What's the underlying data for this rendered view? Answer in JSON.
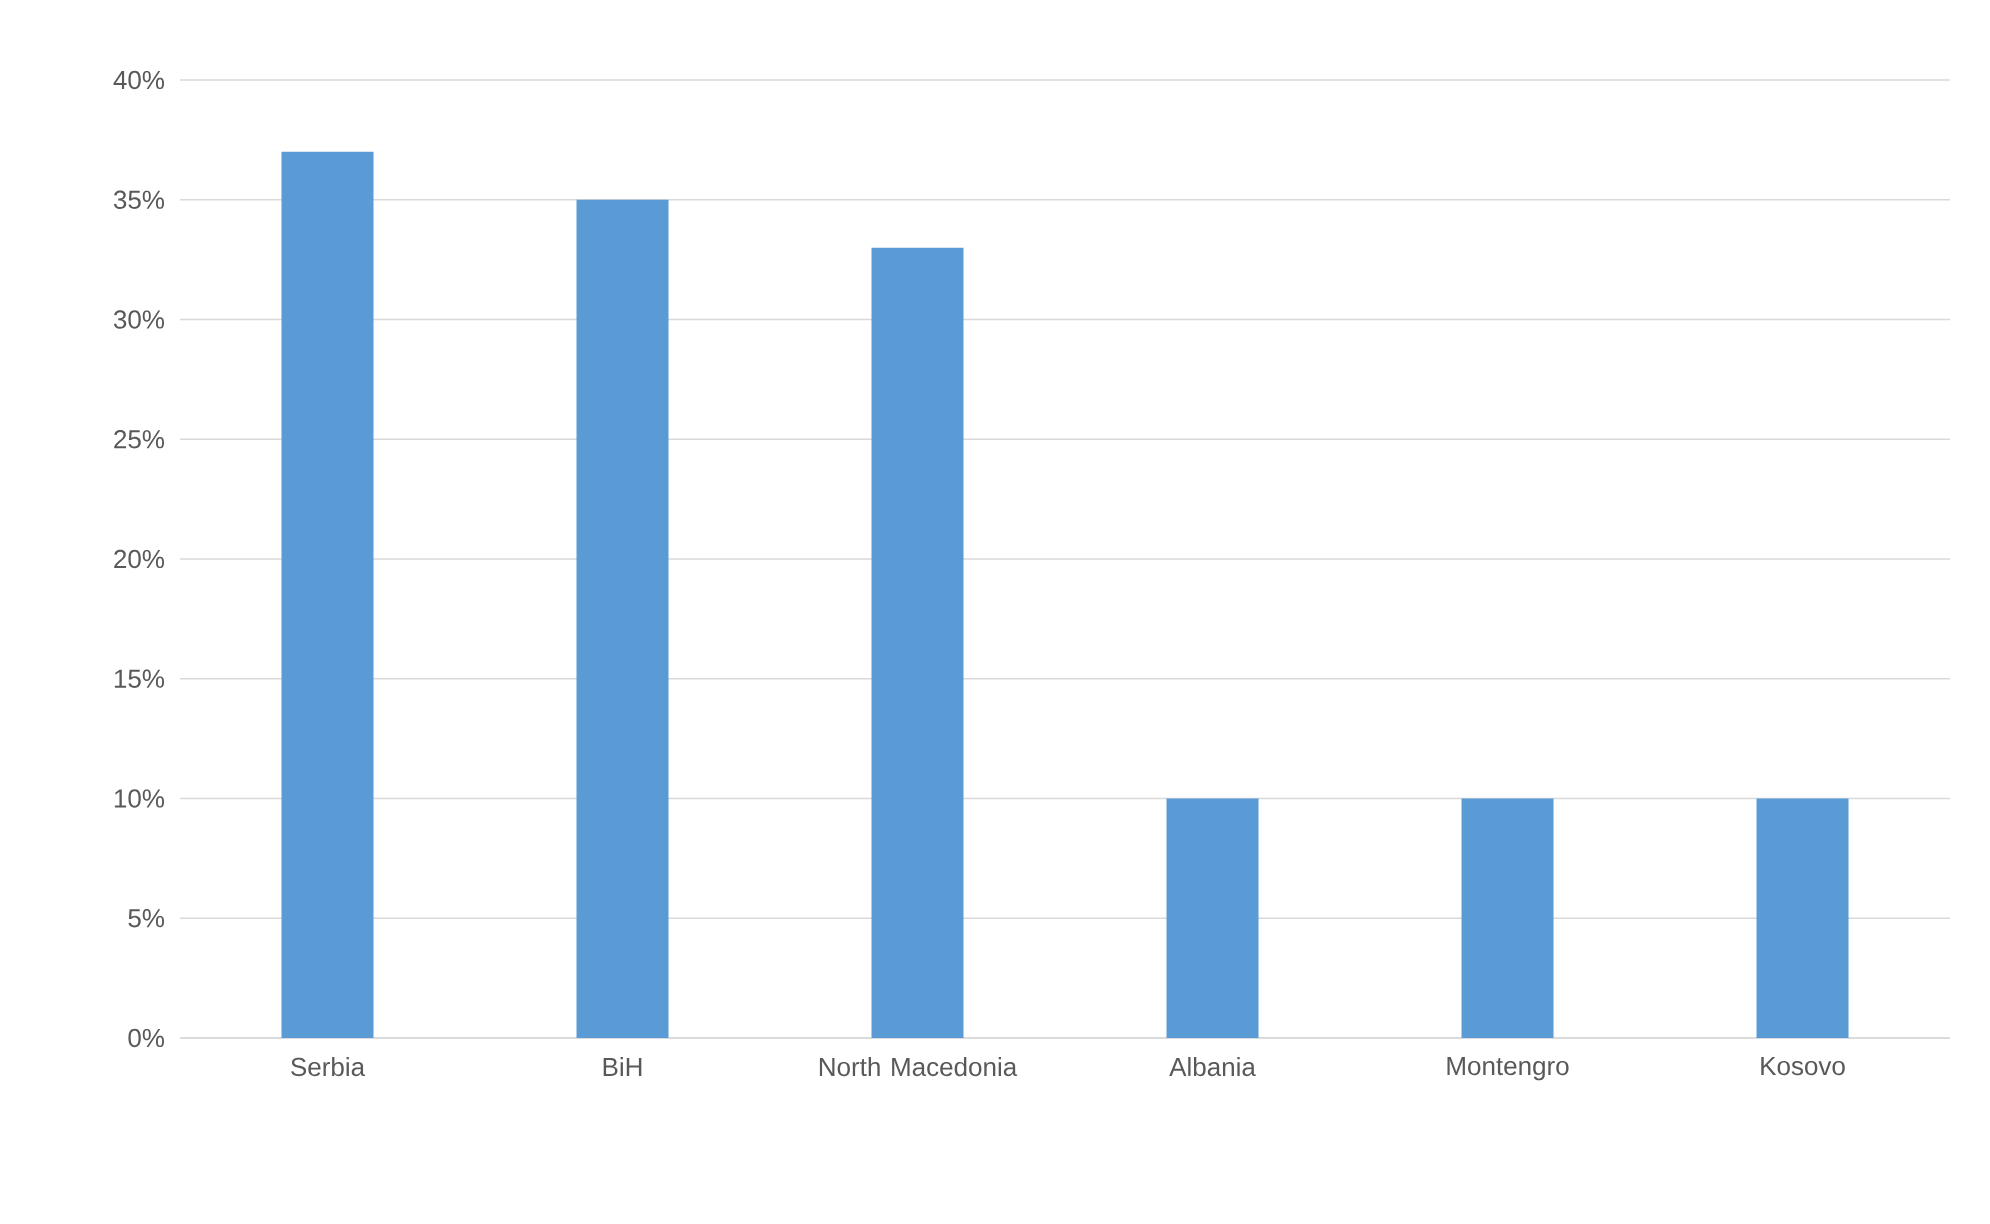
{
  "chart_data": {
    "type": "bar",
    "categories": [
      "Serbia",
      "BiH",
      "North Macedonia",
      "Albania",
      "Montengro",
      "Kosovo"
    ],
    "values": [
      37,
      35,
      33,
      10,
      10,
      10
    ],
    "color": "#5b9bd5",
    "ylim": [
      0,
      40
    ],
    "yticks": [
      {
        "value": 0,
        "label": "0%"
      },
      {
        "value": 5,
        "label": "5%"
      },
      {
        "value": 10,
        "label": "10%"
      },
      {
        "value": 15,
        "label": "15%"
      },
      {
        "value": 20,
        "label": "20%"
      },
      {
        "value": 25,
        "label": "25%"
      },
      {
        "value": 30,
        "label": "30%"
      },
      {
        "value": 35,
        "label": "35%"
      },
      {
        "value": 40,
        "label": "40%"
      }
    ],
    "grid": "y"
  }
}
